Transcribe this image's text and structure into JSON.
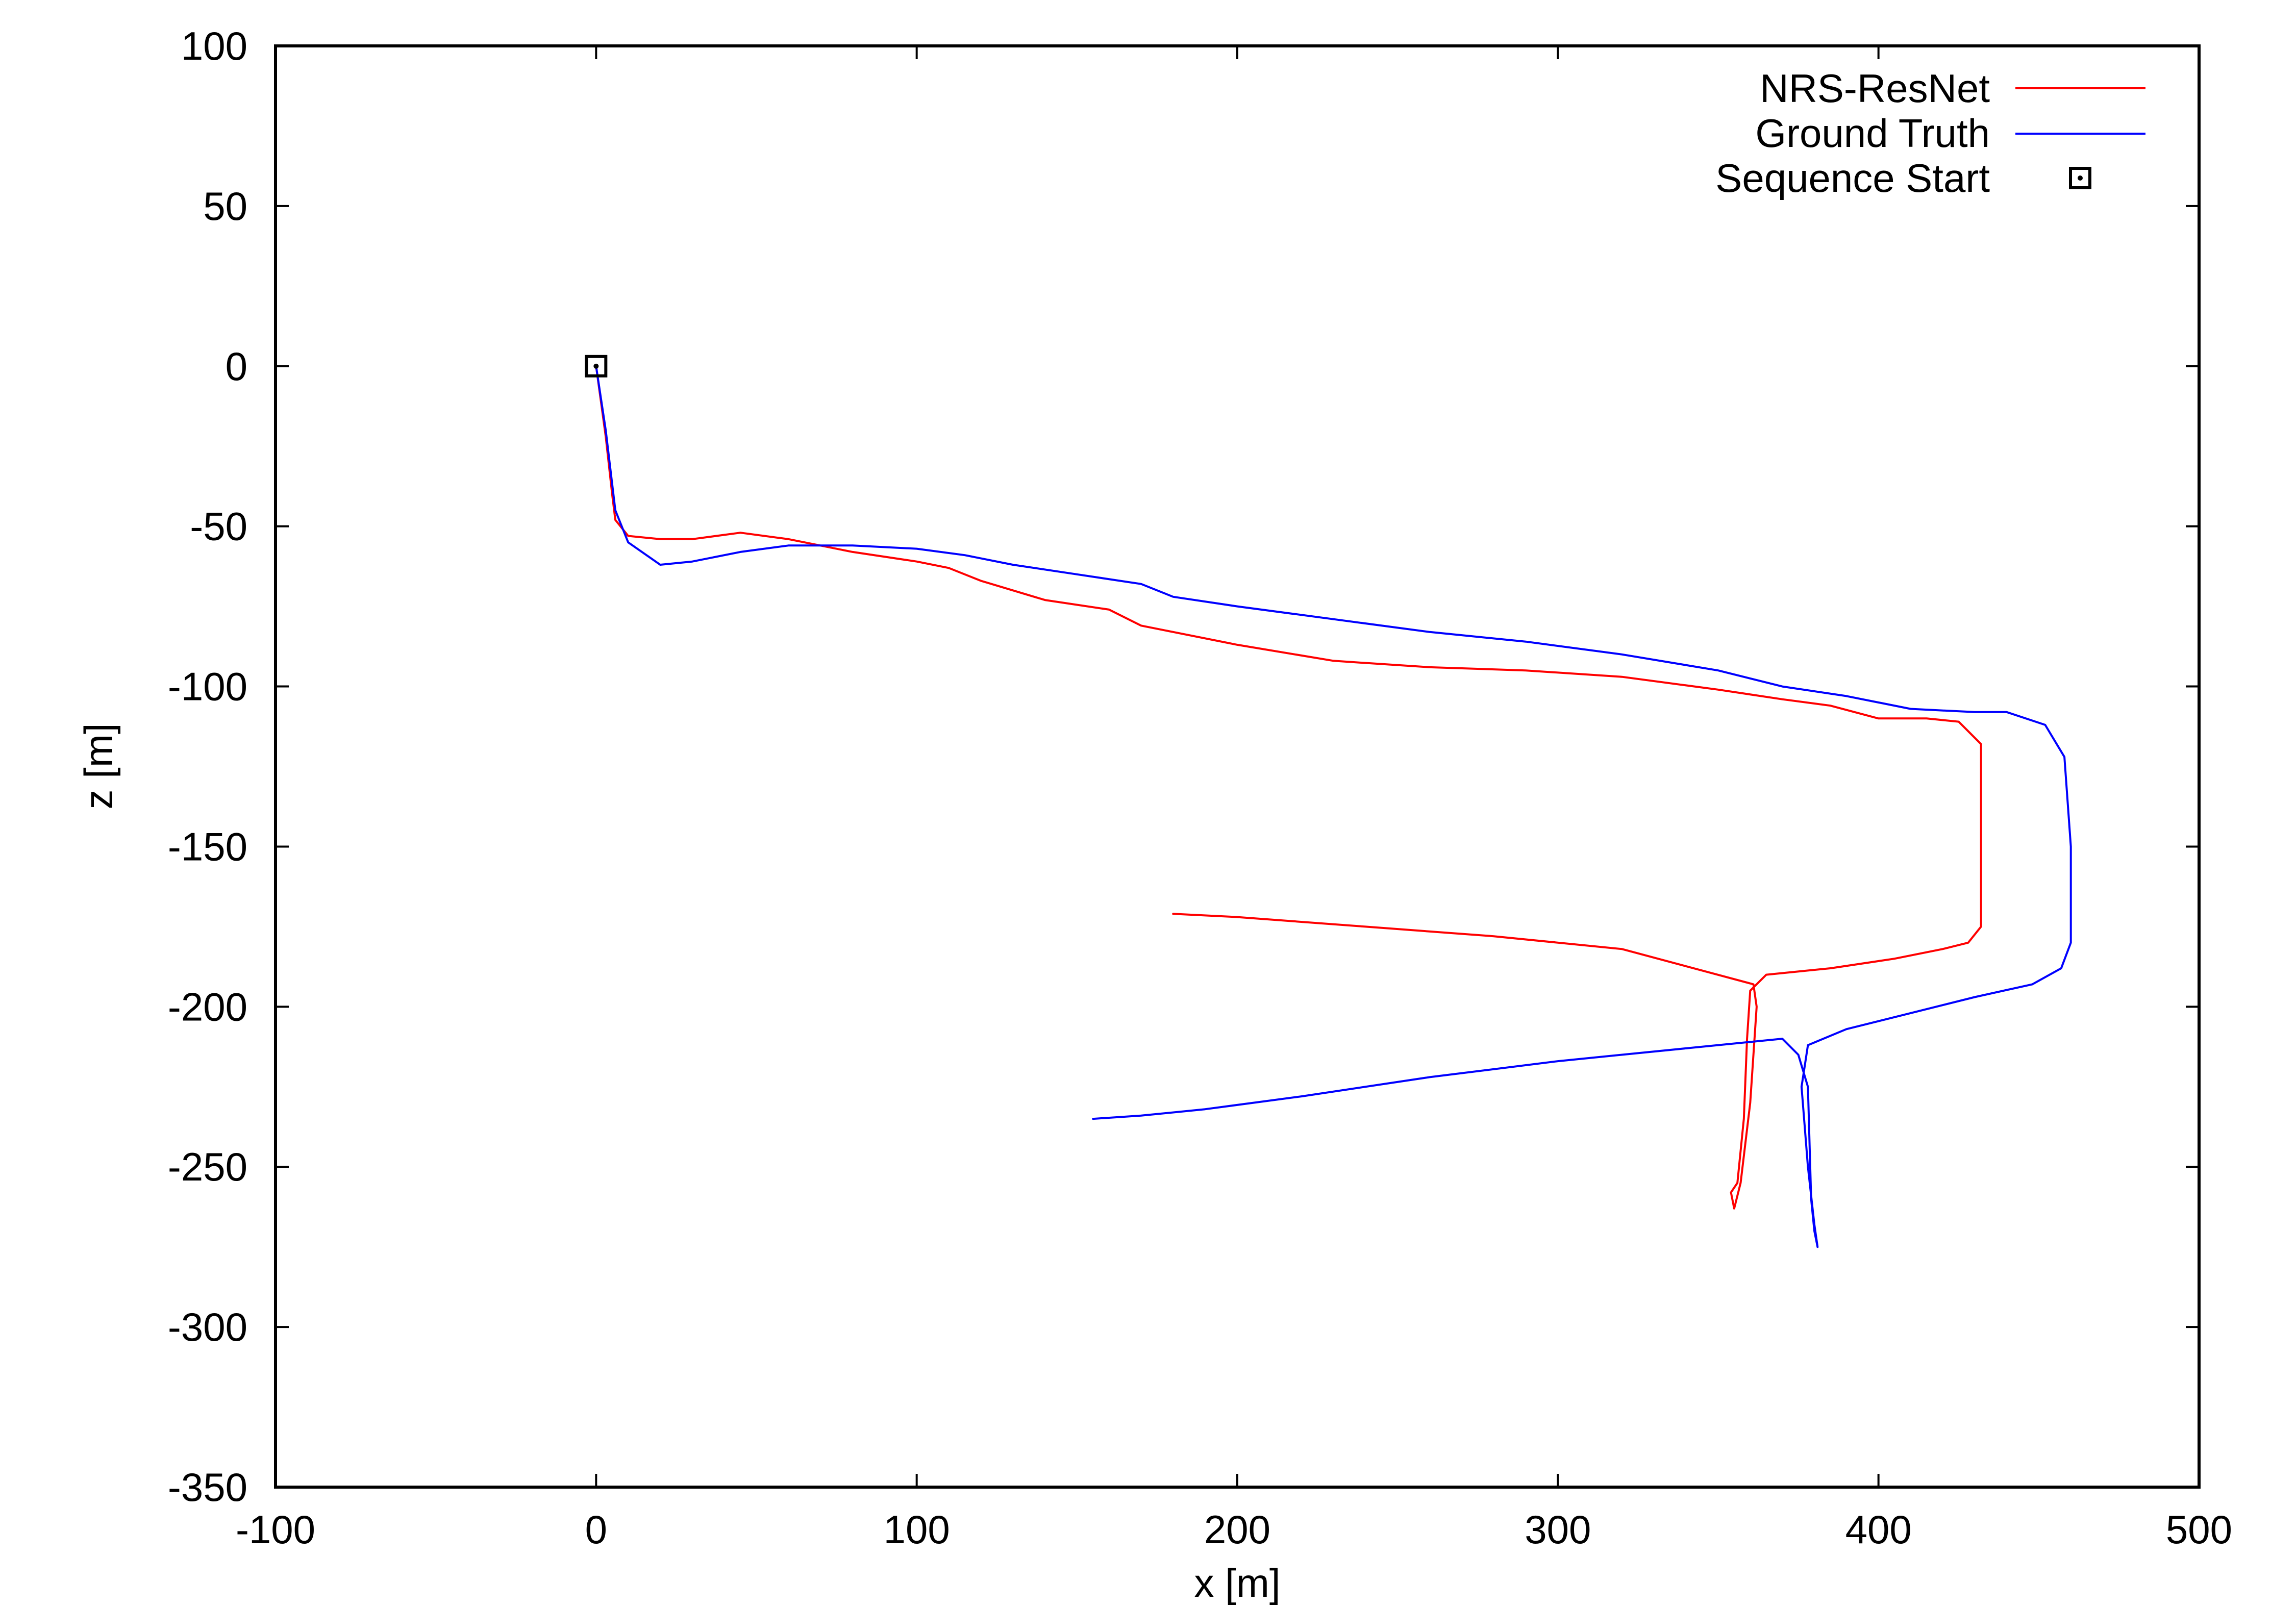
{
  "chart_data": {
    "type": "line",
    "title": "",
    "xlabel": "x [m]",
    "ylabel": "z [m]",
    "xlim": [
      -100,
      500
    ],
    "ylim": [
      -350,
      100
    ],
    "xticks": [
      -100,
      0,
      100,
      200,
      300,
      400,
      500
    ],
    "yticks": [
      100,
      50,
      0,
      -50,
      -100,
      -150,
      -200,
      -250,
      -300,
      -350
    ],
    "grid": false,
    "legend_position": "top-right",
    "series": [
      {
        "name": "NRS-ResNet",
        "color": "#ff0000",
        "x": [
          0,
          3,
          5,
          6,
          10,
          20,
          30,
          45,
          60,
          80,
          100,
          110,
          120,
          140,
          160,
          170,
          180,
          200,
          230,
          260,
          290,
          320,
          350,
          370,
          385,
          400,
          415,
          425,
          432,
          432,
          432,
          428,
          420,
          405,
          385,
          365,
          360,
          359,
          358,
          356,
          354,
          355,
          357,
          360,
          362,
          361,
          320,
          280,
          240,
          200,
          180
        ],
        "y": [
          0,
          -22,
          -40,
          -48,
          -53,
          -54,
          -54,
          -52,
          -54,
          -58,
          -61,
          -63,
          -67,
          -73,
          -76,
          -81,
          -83,
          -87,
          -92,
          -94,
          -95,
          -97,
          -101,
          -104,
          -106,
          -110,
          -110,
          -111,
          -118,
          -150,
          -175,
          -180,
          -182,
          -185,
          -188,
          -190,
          -195,
          -210,
          -235,
          -255,
          -258,
          -263,
          -255,
          -230,
          -200,
          -193,
          -182,
          -178,
          -175,
          -172,
          -171
        ]
      },
      {
        "name": "Ground Truth",
        "color": "#0000ff",
        "x": [
          0,
          3,
          6,
          10,
          20,
          30,
          45,
          60,
          80,
          100,
          115,
          130,
          150,
          170,
          180,
          200,
          230,
          260,
          290,
          320,
          350,
          370,
          390,
          410,
          430,
          440,
          452,
          458,
          460,
          460,
          457,
          448,
          430,
          410,
          390,
          378,
          376,
          378,
          380,
          381,
          380,
          379,
          378,
          375,
          370,
          340,
          300,
          260,
          220,
          190,
          170,
          155
        ],
        "y": [
          0,
          -20,
          -45,
          -55,
          -62,
          -61,
          -58,
          -56,
          -56,
          -57,
          -59,
          -62,
          -65,
          -68,
          -72,
          -75,
          -79,
          -83,
          -86,
          -90,
          -95,
          -100,
          -103,
          -107,
          -108,
          -108,
          -112,
          -122,
          -150,
          -180,
          -188,
          -193,
          -197,
          -202,
          -207,
          -212,
          -225,
          -250,
          -268,
          -275,
          -270,
          -260,
          -225,
          -215,
          -210,
          -213,
          -217,
          -222,
          -228,
          -232,
          -234,
          -235
        ]
      }
    ],
    "markers": [
      {
        "name": "Sequence Start",
        "x": 0,
        "y": 0,
        "symbol": "square-with-dot",
        "color": "#000000"
      }
    ]
  }
}
